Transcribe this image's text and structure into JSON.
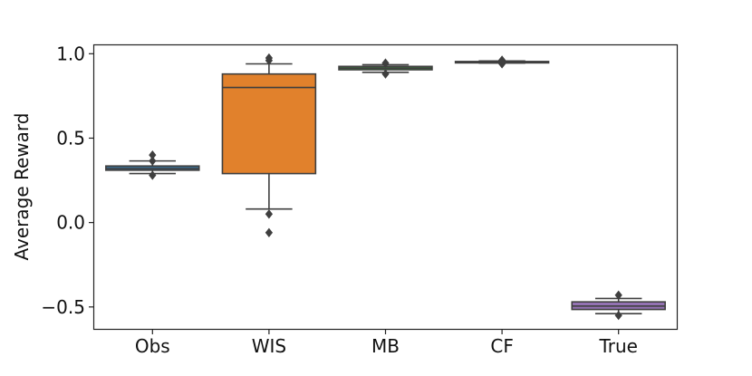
{
  "chart_data": {
    "type": "box",
    "title": "",
    "xlabel": "",
    "ylabel": "Average Reward",
    "ylim": [
      -0.63,
      1.05
    ],
    "yticks": [
      1.0,
      0.5,
      0.0,
      -0.5
    ],
    "ytick_labels": [
      "1.0",
      "0.5",
      "0.0",
      "−0.5"
    ],
    "grid": false,
    "categories": [
      "Obs",
      "WIS",
      "MB",
      "CF",
      "True"
    ],
    "boxes": [
      {
        "name": "Obs",
        "color": "#3a6f93",
        "whislo": 0.29,
        "q1": 0.31,
        "med": 0.32,
        "q3": 0.335,
        "whishi": 0.365,
        "fliers": [
          0.28,
          0.365,
          0.4
        ]
      },
      {
        "name": "WIS",
        "color": "#e1812c",
        "whislo": 0.08,
        "q1": 0.29,
        "med": 0.8,
        "q3": 0.88,
        "whishi": 0.94,
        "fliers": [
          0.05,
          -0.06,
          0.96,
          0.975
        ]
      },
      {
        "name": "MB",
        "color": "#3a923a",
        "whislo": 0.89,
        "q1": 0.905,
        "med": 0.915,
        "q3": 0.925,
        "whishi": 0.935,
        "fliers": [
          0.88,
          0.945
        ]
      },
      {
        "name": "CF",
        "color": "#c03d3e",
        "whislo": 0.945,
        "q1": 0.948,
        "med": 0.951,
        "q3": 0.954,
        "whishi": 0.957,
        "fliers": [
          0.94,
          0.962
        ]
      },
      {
        "name": "True",
        "color": "#9372b2",
        "whislo": -0.54,
        "q1": -0.515,
        "med": -0.495,
        "q3": -0.47,
        "whishi": -0.45,
        "fliers": [
          -0.43,
          -0.55
        ]
      }
    ],
    "line_color": "#3f3f3f"
  }
}
